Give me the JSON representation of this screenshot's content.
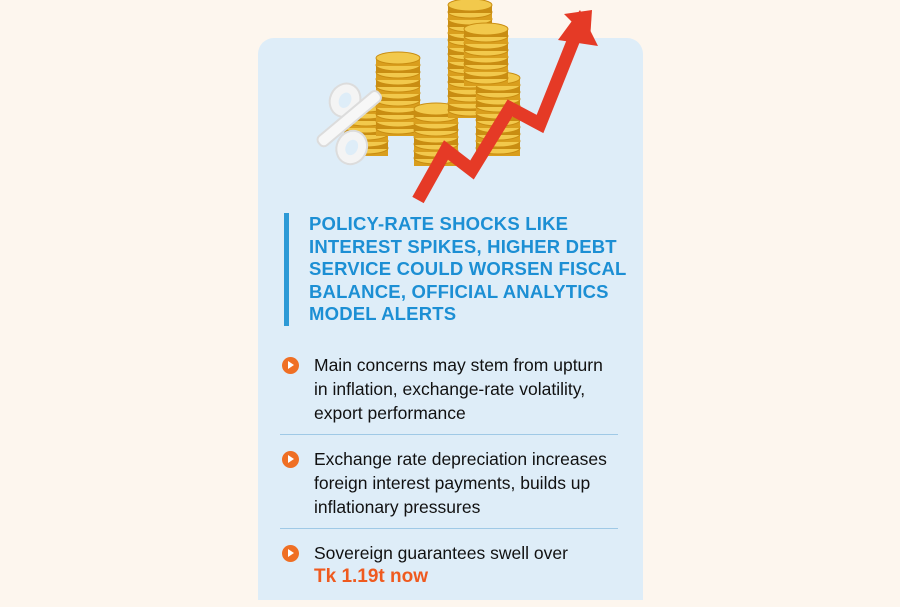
{
  "colors": {
    "card_background": "#deedf8",
    "headline": "#1c8fd4",
    "accent_orange": "#ef6f24",
    "arrow_red": "#e53a26",
    "coin_gold": "#e8b22a"
  },
  "illustration": {
    "icons": [
      "gold-coin-stacks",
      "rising-red-arrow",
      "percent-sign"
    ]
  },
  "headline": "POLICY-RATE SHOCKS LIKE INTEREST SPIKES, HIGHER DEBT SERVICE COULD WORSEN FISCAL BALANCE, OFFICIAL ANALYTICS MODEL ALERTS",
  "bullets": [
    {
      "text": "Main concerns may stem from upturn in inflation, exchange-rate volatility, export performance"
    },
    {
      "text": "Exchange rate depreciation increases foreign interest payments, builds up inflationary pressures"
    },
    {
      "text": "Sovereign guarantees swell over",
      "highlight": "Tk 1.19t now"
    }
  ]
}
